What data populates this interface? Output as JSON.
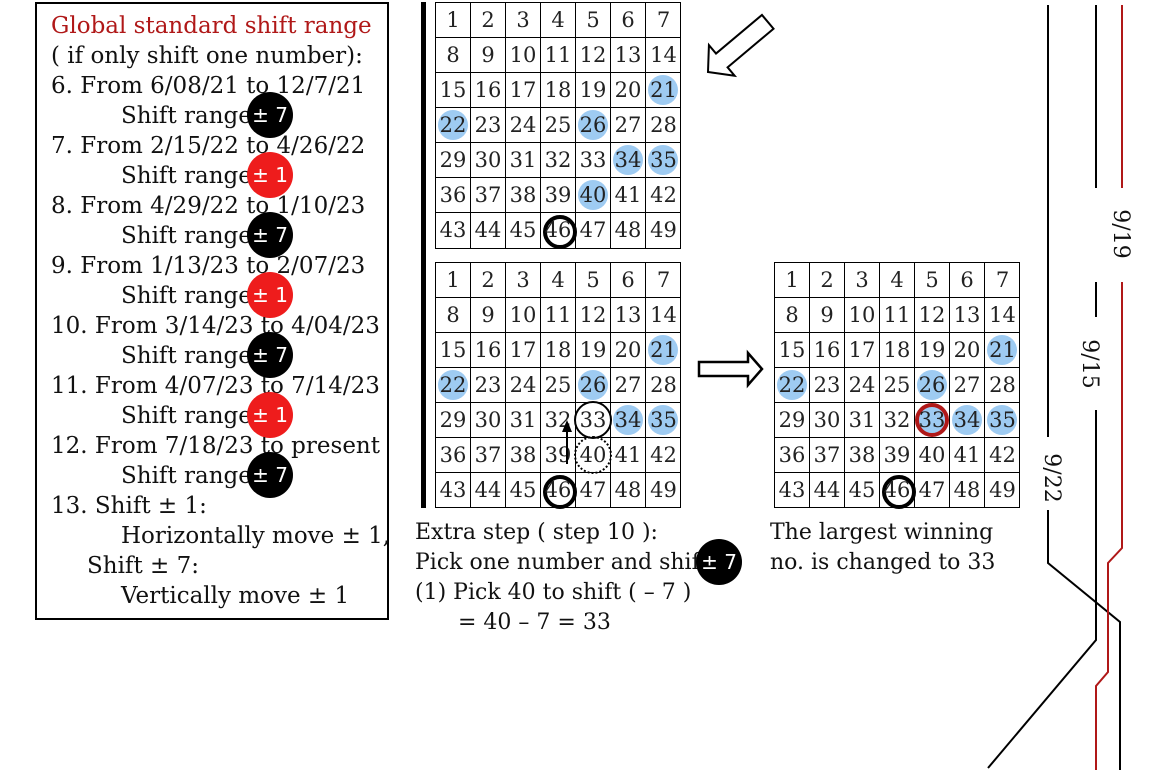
{
  "rules": {
    "title": "Global standard shift range",
    "subtitle": "( if only shift one number):",
    "shift_label": "Shift range:",
    "items": [
      {
        "label": "6. From 6/08/21 to 12/7/21",
        "range": "± 7",
        "color": "black"
      },
      {
        "label": "7. From 2/15/22 to 4/26/22",
        "range": "± 1",
        "color": "red"
      },
      {
        "label": "8. From 4/29/22 to 1/10/23",
        "range": "± 7",
        "color": "black"
      },
      {
        "label": "9. From 1/13/23 to 2/07/23",
        "range": "± 1",
        "color": "red"
      },
      {
        "label": "10. From 3/14/23 to 4/04/23",
        "range": "± 7",
        "color": "black"
      },
      {
        "label": "11. From 4/07/23 to 7/14/23",
        "range": "± 1",
        "color": "red"
      },
      {
        "label": "12. From 7/18/23 to present",
        "range": "± 7",
        "color": "black"
      }
    ],
    "note_title": "13. Shift ± 1:",
    "note_h": "Horizontally move ± 1,",
    "note_shift7": "Shift ± 7:",
    "note_v": "Vertically move ± 1"
  },
  "grids": [
    {
      "name": "grid-top",
      "highlighted": [
        21,
        22,
        26,
        34,
        35,
        40
      ],
      "ring": [
        46
      ],
      "red_ring": [],
      "thin_ring": [],
      "dotted_ring": []
    },
    {
      "name": "grid-before",
      "highlighted": [
        21,
        22,
        26,
        34,
        35
      ],
      "ring": [
        46
      ],
      "red_ring": [],
      "thin_ring": [
        33
      ],
      "dotted_ring": [
        40
      ]
    },
    {
      "name": "grid-after",
      "highlighted": [
        21,
        22,
        26,
        33,
        34,
        35
      ],
      "ring": [
        46
      ],
      "red_ring": [
        33
      ],
      "thin_ring": [],
      "dotted_ring": []
    }
  ],
  "extra": {
    "line1": "Extra step ( step 10 ):",
    "line2": "Pick one number and shift",
    "badge": "± 7",
    "line3": "(1) Pick 40 to shift ( – 7 )",
    "line4": "= 40 – 7 = 33"
  },
  "result": {
    "line1": "The largest winning",
    "line2": "no. is changed to 33"
  },
  "dates": [
    "9/19",
    "9/15",
    "9/22"
  ]
}
